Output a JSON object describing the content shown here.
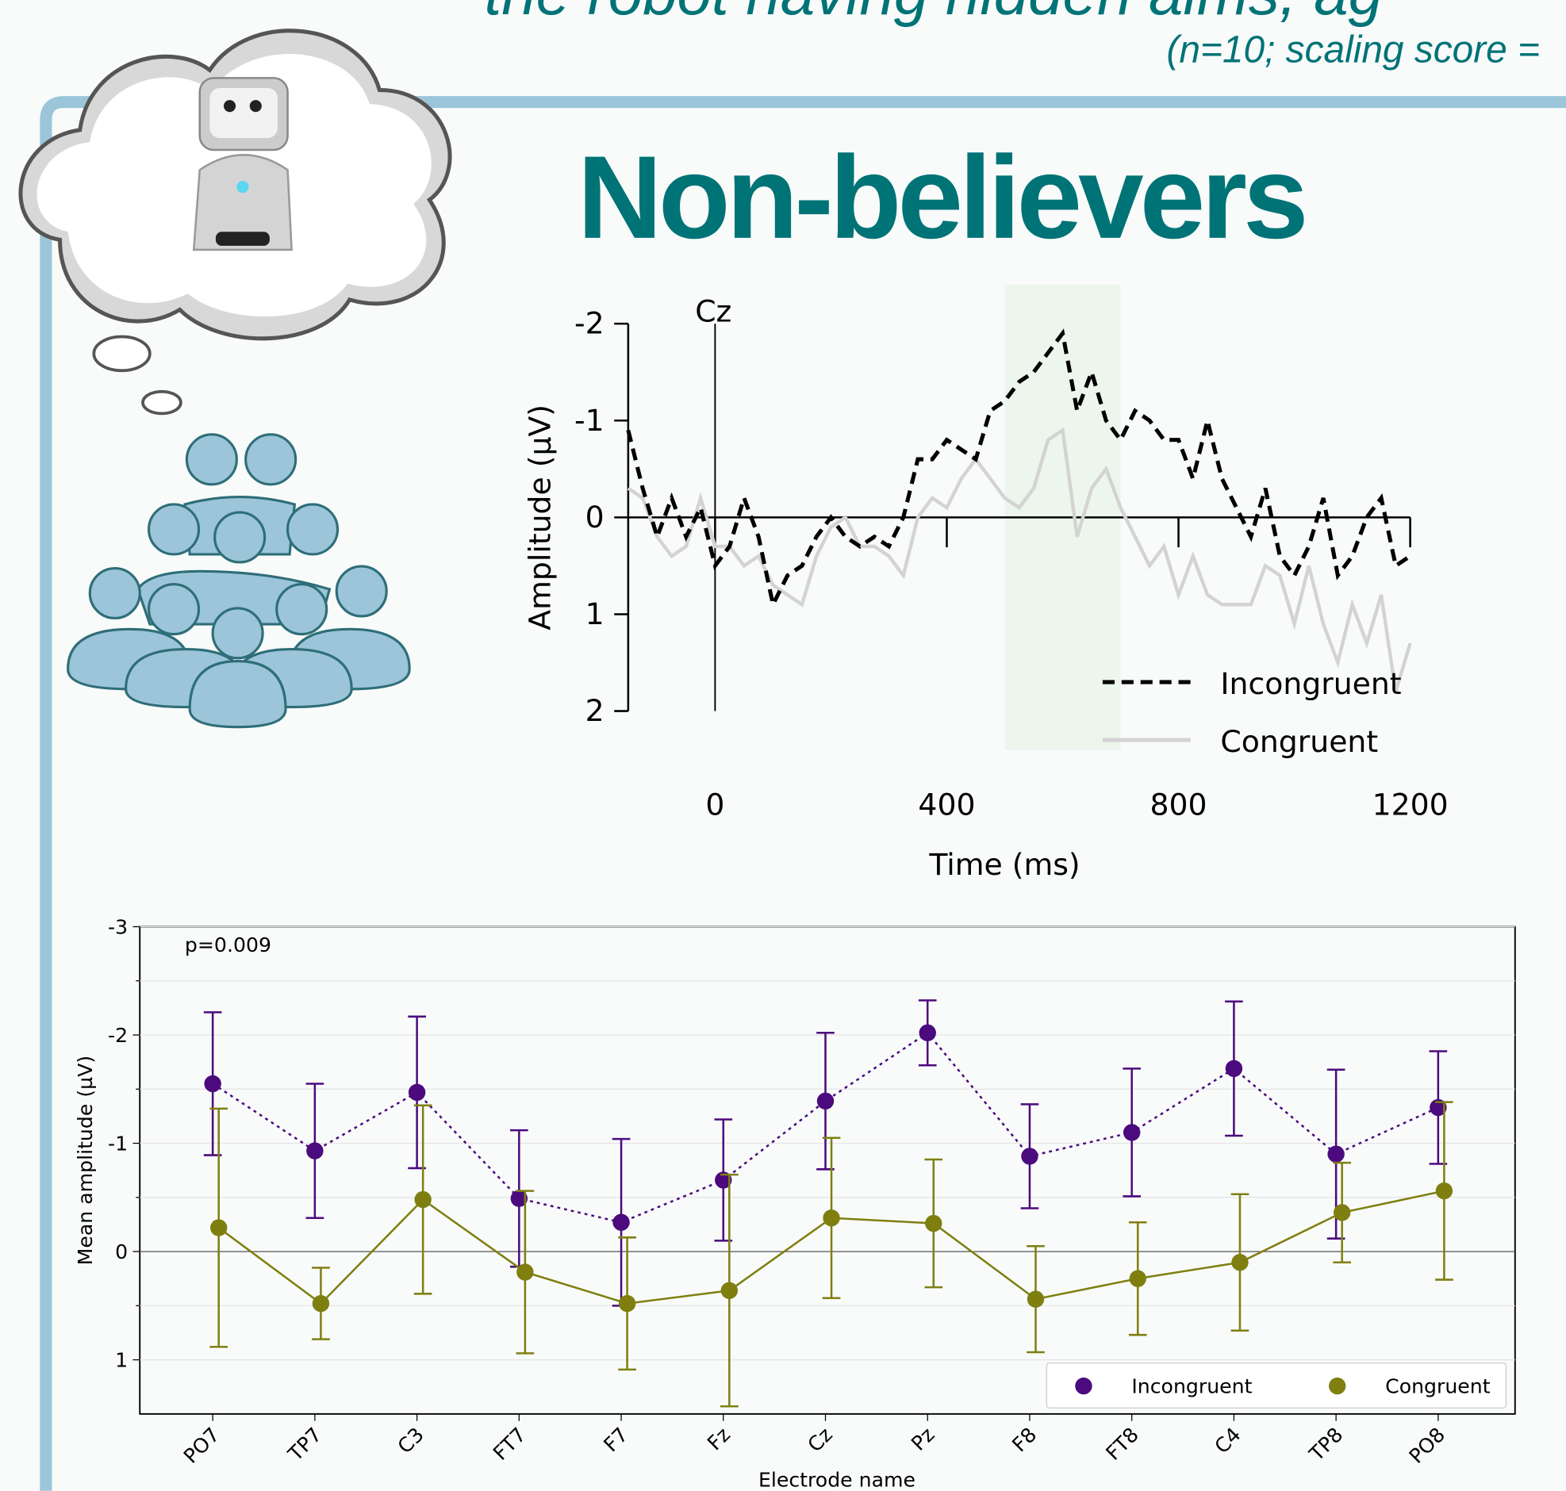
{
  "header": {
    "title": "the robot having hidden aims, ag",
    "subtitle": "(n=10; scaling score =",
    "group": "Non-believers"
  },
  "chart_data": [
    {
      "type": "line",
      "annotation": "Cz",
      "y_label": "Amplitude (µV)",
      "x_label": "Time (ms)",
      "xlim": [
        -150,
        1200
      ],
      "xticks": [
        0,
        400,
        800,
        1200
      ],
      "ylim": [
        2,
        -2
      ],
      "yticks": [
        -2,
        -1,
        0,
        1,
        2
      ],
      "shaded_region": [
        500,
        700
      ],
      "legend": "lower right",
      "x": [
        -150,
        -125,
        -100,
        -75,
        -50,
        -25,
        0,
        25,
        50,
        75,
        100,
        125,
        150,
        175,
        200,
        225,
        250,
        275,
        300,
        325,
        350,
        375,
        400,
        425,
        450,
        475,
        500,
        525,
        550,
        575,
        600,
        625,
        650,
        675,
        700,
        725,
        750,
        775,
        800,
        825,
        850,
        875,
        900,
        925,
        950,
        975,
        1000,
        1025,
        1050,
        1075,
        1100,
        1125,
        1150,
        1175,
        1200
      ],
      "series": [
        {
          "name": "Incongruent",
          "color": "#000000",
          "dash": true,
          "values": [
            -0.9,
            -0.3,
            0.2,
            -0.2,
            0.2,
            -0.1,
            0.5,
            0.3,
            -0.2,
            0.2,
            0.9,
            0.6,
            0.5,
            0.2,
            0.0,
            0.2,
            0.3,
            0.2,
            0.3,
            0.0,
            -0.6,
            -0.6,
            -0.8,
            -0.7,
            -0.6,
            -1.1,
            -1.2,
            -1.4,
            -1.5,
            -1.7,
            -1.9,
            -1.1,
            -1.5,
            -1.0,
            -0.8,
            -1.1,
            -1.0,
            -0.8,
            -0.8,
            -0.4,
            -1.0,
            -0.4,
            -0.1,
            0.2,
            -0.3,
            0.4,
            0.6,
            0.3,
            -0.2,
            0.6,
            0.4,
            0.0,
            -0.2,
            0.5,
            0.4
          ]
        },
        {
          "name": "Congruent",
          "color": "#d3d3d3",
          "dash": false,
          "values": [
            -0.3,
            -0.2,
            0.2,
            0.4,
            0.3,
            -0.2,
            0.3,
            0.3,
            0.5,
            0.4,
            0.7,
            0.8,
            0.9,
            0.4,
            0.1,
            0.0,
            0.3,
            0.3,
            0.4,
            0.6,
            0.0,
            -0.2,
            -0.1,
            -0.4,
            -0.6,
            -0.4,
            -0.2,
            -0.1,
            -0.3,
            -0.8,
            -0.9,
            0.2,
            -0.3,
            -0.5,
            -0.1,
            0.2,
            0.5,
            0.3,
            0.8,
            0.4,
            0.8,
            0.9,
            0.9,
            0.9,
            0.5,
            0.6,
            1.1,
            0.5,
            1.1,
            1.5,
            0.9,
            1.3,
            0.8,
            1.8,
            1.3
          ]
        }
      ]
    },
    {
      "type": "errorbar",
      "annotation": "p=0.009",
      "y_label": "Mean amplitude (µV)",
      "x_label": "Electrode name",
      "categories": [
        "PO7",
        "TP7",
        "C3",
        "FT7",
        "F7",
        "Fz",
        "Cz",
        "Pz",
        "F8",
        "FT8",
        "C4",
        "TP8",
        "PO8"
      ],
      "ylim": [
        1.5,
        -3
      ],
      "yticks": [
        -3,
        -2,
        -1,
        0,
        1
      ],
      "minor_yticks": [
        -2.5,
        -1.5,
        -0.5,
        0.5
      ],
      "grid": true,
      "legend": "lower right",
      "series": [
        {
          "name": "Incongruent",
          "color": "#4b0a7d",
          "dash": true,
          "values": [
            -1.55,
            -0.93,
            -1.47,
            -0.49,
            -0.27,
            -0.66,
            -1.39,
            -2.02,
            -0.88,
            -1.1,
            -1.69,
            -0.9,
            -1.33
          ],
          "errors": [
            0.66,
            0.62,
            0.7,
            0.63,
            0.77,
            0.56,
            0.63,
            0.3,
            0.48,
            0.59,
            0.62,
            0.78,
            0.52
          ]
        },
        {
          "name": "Congruent",
          "color": "#7f7f10",
          "dash": false,
          "values": [
            -0.22,
            0.48,
            -0.48,
            0.19,
            0.48,
            0.36,
            -0.31,
            -0.26,
            0.44,
            0.25,
            0.1,
            -0.36,
            -0.56
          ],
          "errors": [
            1.1,
            0.33,
            0.87,
            0.75,
            0.61,
            1.07,
            0.74,
            0.59,
            0.49,
            0.52,
            0.63,
            0.46,
            0.82
          ]
        }
      ]
    }
  ]
}
